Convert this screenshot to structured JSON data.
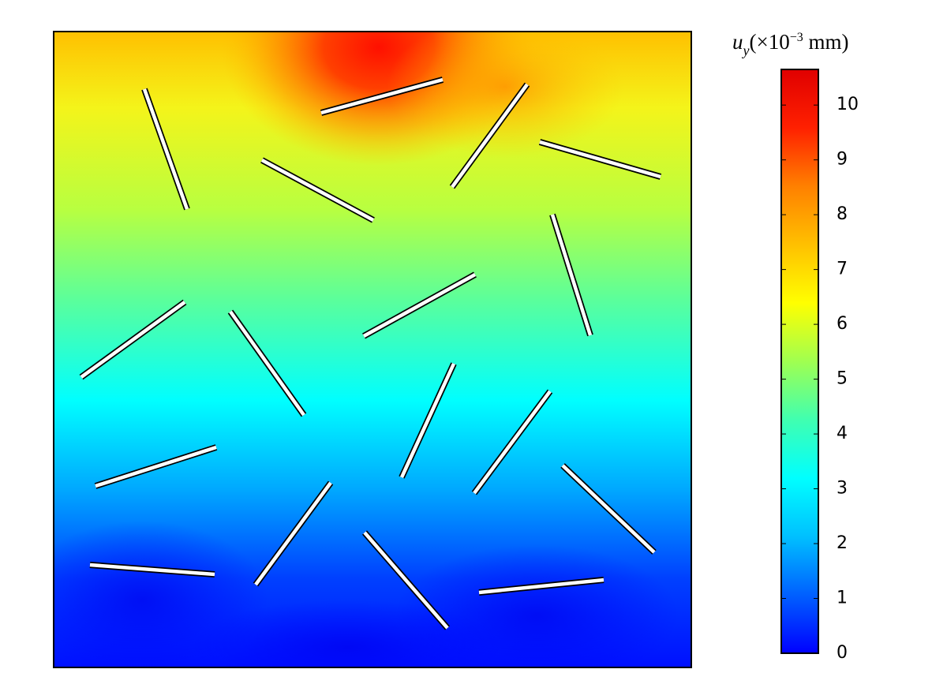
{
  "chart_data": {
    "type": "field",
    "colorbar_label": {
      "symbol": "u",
      "subscript": "y",
      "unit_start": "(×10",
      "exponent": "−3",
      "unit_end": " mm)"
    },
    "clim": [
      0,
      10.65
    ],
    "cticks": [
      0,
      1,
      2,
      3,
      4,
      5,
      6,
      7,
      8,
      9,
      10
    ],
    "colormap": [
      "#0000ff",
      "#0060ff",
      "#00c0ff",
      "#00ffff",
      "#40ffb0",
      "#a0ff50",
      "#ffff00",
      "#ffc000",
      "#ff8000",
      "#ff2000",
      "#e00000"
    ]
  }
}
